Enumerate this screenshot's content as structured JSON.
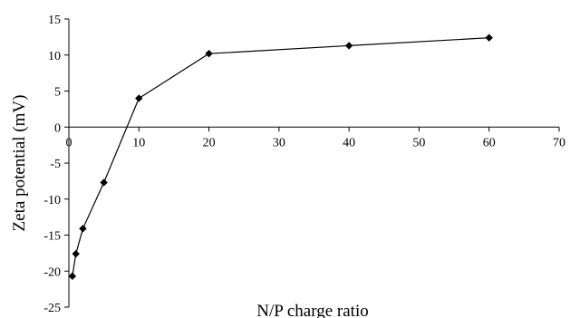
{
  "chart_data": {
    "type": "line",
    "title": "",
    "xlabel": "N/P charge ratio",
    "ylabel": "Zeta potential (mV)",
    "xlim": [
      0,
      70
    ],
    "ylim": [
      -25,
      15
    ],
    "xticks": [
      0,
      10,
      20,
      30,
      40,
      50,
      60,
      70
    ],
    "yticks": [
      15,
      10,
      5,
      0,
      -5,
      -10,
      -15,
      -20,
      -25
    ],
    "x_tick_labels": [
      "0",
      "10",
      "20",
      "30",
      "40",
      "50",
      "60",
      "70"
    ],
    "y_tick_labels": [
      "15",
      "10",
      "5",
      "0",
      "-5",
      "-10",
      "-15",
      "-20",
      "-25"
    ],
    "grid": false,
    "legend": "none",
    "marker": "diamond",
    "colors": {
      "line": "#000000",
      "marker": "#000000"
    },
    "series": [
      {
        "x": [
          0.5,
          1,
          2,
          5,
          10,
          20,
          40,
          60
        ],
        "y": [
          -20.7,
          -17.6,
          -14.1,
          -7.7,
          4.0,
          10.2,
          11.3,
          12.4
        ]
      }
    ]
  }
}
